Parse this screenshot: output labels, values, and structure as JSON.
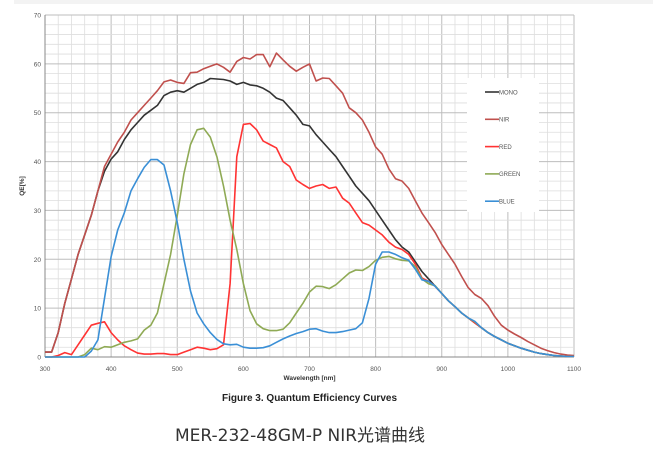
{
  "chart_data": {
    "type": "line",
    "title": "Figure 3. Quantum Efficiency Curves",
    "xlabel": "Wavelength [nm]",
    "ylabel": "QE[%]",
    "xlim": [
      300,
      1100
    ],
    "ylim": [
      0,
      70
    ],
    "xticks": [
      300,
      400,
      500,
      600,
      700,
      800,
      900,
      1000,
      1100
    ],
    "yticks": [
      0,
      10,
      20,
      30,
      40,
      50,
      60,
      70
    ],
    "grid": true,
    "legend_position": "right",
    "x": [
      300,
      310,
      320,
      330,
      340,
      350,
      360,
      370,
      380,
      390,
      400,
      410,
      420,
      430,
      440,
      450,
      460,
      470,
      480,
      490,
      500,
      510,
      520,
      530,
      540,
      550,
      560,
      570,
      580,
      590,
      600,
      610,
      620,
      630,
      640,
      650,
      660,
      670,
      680,
      690,
      700,
      710,
      720,
      730,
      740,
      750,
      760,
      770,
      780,
      790,
      800,
      810,
      820,
      830,
      840,
      850,
      860,
      870,
      880,
      890,
      900,
      910,
      920,
      930,
      940,
      950,
      960,
      970,
      980,
      990,
      1000,
      1010,
      1020,
      1030,
      1040,
      1050,
      1060,
      1070,
      1080,
      1090,
      1100
    ],
    "series": [
      {
        "name": "MONO",
        "color": "#333333",
        "values": [
          1,
          1,
          5,
          11,
          16,
          21,
          25,
          29,
          34,
          38,
          40.5,
          42,
          44.5,
          46.5,
          48,
          49.5,
          50.5,
          51.5,
          53.5,
          54.2,
          54.5,
          54.2,
          55,
          55.8,
          56.2,
          57,
          56.9,
          56.8,
          56.5,
          55.8,
          56.2,
          55.7,
          55.5,
          55,
          54.2,
          53,
          52.5,
          51,
          49.5,
          47.6,
          47.3,
          45.5,
          44,
          42.5,
          41,
          39,
          37,
          35,
          33.5,
          32,
          30,
          28,
          26,
          24,
          22.5,
          21.5,
          19.5,
          17.5,
          16,
          14.5,
          13,
          11.5,
          10.3,
          9,
          8,
          7,
          6,
          5,
          4.2,
          3.5,
          2.8,
          2.3,
          1.8,
          1.4,
          1,
          0.7,
          0.5,
          0.3,
          0.2,
          0.1,
          0.1
        ]
      },
      {
        "name": "NIR",
        "color": "#c0504d",
        "values": [
          1,
          1,
          5,
          11,
          16,
          21,
          25,
          29,
          34,
          39,
          41.5,
          44,
          46,
          48.5,
          50,
          51.5,
          53,
          54.5,
          56.3,
          56.7,
          56.2,
          56,
          58.2,
          58.3,
          59,
          59.5,
          60,
          59.3,
          58.3,
          60.5,
          61.3,
          61,
          61.9,
          61.9,
          59.4,
          62.2,
          60.8,
          59.5,
          58.5,
          59.3,
          60,
          56.5,
          57.1,
          57,
          55.5,
          54,
          51,
          50,
          48.5,
          46,
          43,
          41.5,
          38.5,
          36.5,
          36,
          34.5,
          32,
          29.5,
          27.5,
          25.5,
          23,
          21,
          19,
          16.5,
          14.2,
          12.8,
          12,
          10.5,
          8.3,
          6.5,
          5.5,
          4.7,
          4,
          3.2,
          2.5,
          1.8,
          1.3,
          0.9,
          0.6,
          0.4,
          0.3
        ]
      },
      {
        "name": "RED",
        "color": "#ff3333",
        "values": [
          0,
          0,
          0.3,
          0.9,
          0.5,
          2.5,
          4.5,
          6.5,
          6.9,
          7.2,
          5,
          3.5,
          2.3,
          1.5,
          0.8,
          0.6,
          0.6,
          0.7,
          0.7,
          0.5,
          0.5,
          1,
          1.5,
          2,
          1.8,
          1.5,
          1.7,
          2.5,
          15,
          41,
          47.6,
          47.8,
          46.5,
          44.2,
          43.5,
          42.8,
          40,
          39,
          36.2,
          35.3,
          34.5,
          35,
          35.3,
          34.5,
          34.8,
          32.5,
          31.5,
          29.5,
          27.5,
          27,
          26,
          25,
          23.5,
          22.5,
          22,
          21,
          19,
          16.2,
          15.5,
          14.5,
          13,
          11.5,
          10.3,
          9,
          8,
          7,
          6,
          5,
          4.2,
          3.5,
          2.8,
          2.3,
          1.8,
          1.4,
          1,
          0.7,
          0.5,
          0.3,
          0.2,
          0.1,
          0.1
        ]
      },
      {
        "name": "GREEN",
        "color": "#8faa55",
        "values": [
          0,
          0,
          0,
          0,
          0,
          0,
          0.5,
          1.8,
          1.5,
          2.1,
          2,
          2.5,
          3,
          3.3,
          3.7,
          5.5,
          6.5,
          9,
          15,
          21,
          29,
          37.5,
          43.5,
          46.5,
          46.8,
          45,
          41,
          35,
          28,
          22,
          15,
          9.5,
          6.8,
          5.8,
          5.4,
          5.4,
          5.7,
          7,
          9,
          11,
          13.3,
          14.5,
          14.4,
          14,
          14.8,
          16,
          17.2,
          17.8,
          17.7,
          18.5,
          19.8,
          20.4,
          20.6,
          20.1,
          19.8,
          19.7,
          18.5,
          16,
          15,
          14.6,
          13,
          11.5,
          10.3,
          9,
          8,
          7.2,
          6,
          5,
          4.2,
          3.5,
          2.8,
          2.3,
          1.8,
          1.4,
          1,
          0.7,
          0.5,
          0.3,
          0.2,
          0.1,
          0.1
        ]
      },
      {
        "name": "BLUE",
        "color": "#3a8fd6",
        "values": [
          0,
          0,
          0,
          0,
          0,
          0,
          0,
          1.2,
          3.5,
          12,
          20.5,
          26,
          29.5,
          34,
          36.5,
          38.8,
          40.4,
          40.4,
          39.3,
          34,
          27.5,
          20,
          13.5,
          9,
          6.8,
          5,
          3.6,
          2.7,
          2.5,
          2.6,
          2,
          1.8,
          1.8,
          1.9,
          2.3,
          3,
          3.7,
          4.3,
          4.8,
          5.2,
          5.7,
          5.8,
          5.3,
          5,
          5,
          5.2,
          5.5,
          5.8,
          7,
          12,
          19,
          21.5,
          21.5,
          21,
          20.3,
          19.8,
          18,
          15.8,
          15.5,
          14.5,
          13,
          11.5,
          10.3,
          9,
          8,
          7.3,
          6,
          5,
          4.2,
          3.5,
          2.8,
          2.3,
          1.8,
          1.4,
          1,
          0.7,
          0.5,
          0.3,
          0.2,
          0.1,
          0.1
        ]
      }
    ]
  },
  "caption": "MER-232-48GM-P NIR光谱曲线"
}
